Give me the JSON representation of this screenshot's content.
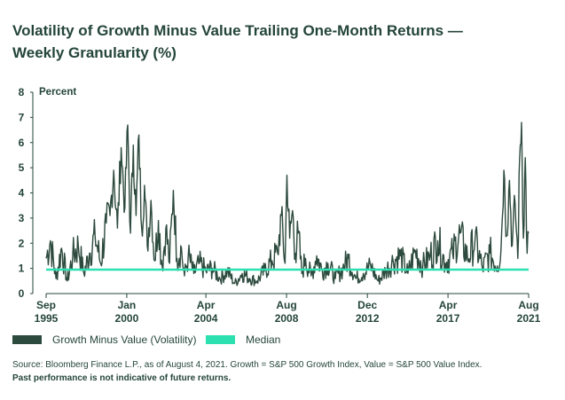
{
  "chart_data": {
    "type": "line",
    "title_line1": "Volatility of Growth Minus Value Trailing One-Month Returns —",
    "title_line2": "Weekly Granularity (%)",
    "ylabel": "Percent",
    "ylim": [
      0,
      8
    ],
    "yticks": [
      "0",
      "1",
      "2",
      "3",
      "4",
      "5",
      "6",
      "7",
      "8"
    ],
    "xticks": [
      {
        "month": "Sep",
        "year": "1995",
        "x": 1995.67
      },
      {
        "month": "Jan",
        "year": "2000",
        "x": 2000.0
      },
      {
        "month": "Apr",
        "year": "2004",
        "x": 2004.25
      },
      {
        "month": "Aug",
        "year": "2008",
        "x": 2008.58
      },
      {
        "month": "Dec",
        "year": "2012",
        "x": 2012.92
      },
      {
        "month": "Apr",
        "year": "2017",
        "x": 2017.25
      },
      {
        "month": "Aug",
        "year": "2021",
        "x": 2021.58
      }
    ],
    "xlim": [
      1995.67,
      2021.58
    ],
    "grid": false,
    "legend_position": "bottom-left",
    "series": [
      {
        "name": "Growth Minus Value (Volatility)",
        "color": "#2d4a3e",
        "x": [
          1995.67,
          1995.9,
          1996.2,
          1996.5,
          1996.8,
          1997.1,
          1997.4,
          1997.7,
          1998.0,
          1998.3,
          1998.6,
          1998.9,
          1999.1,
          1999.3,
          1999.5,
          1999.7,
          1999.9,
          2000.05,
          2000.2,
          2000.35,
          2000.5,
          2000.65,
          2000.8,
          2000.95,
          2001.1,
          2001.3,
          2001.5,
          2001.7,
          2001.9,
          2002.1,
          2002.3,
          2002.5,
          2002.7,
          2002.9,
          2003.1,
          2003.3,
          2003.6,
          2003.9,
          2004.25,
          2004.6,
          2005.0,
          2005.4,
          2005.8,
          2006.2,
          2006.6,
          2007.0,
          2007.4,
          2007.8,
          2008.1,
          2008.3,
          2008.5,
          2008.6,
          2008.75,
          2008.9,
          2009.05,
          2009.2,
          2009.4,
          2009.6,
          2009.9,
          2010.2,
          2010.5,
          2010.8,
          2011.2,
          2011.6,
          2011.9,
          2012.3,
          2012.7,
          2013.1,
          2013.5,
          2013.9,
          2014.3,
          2014.7,
          2015.1,
          2015.5,
          2015.9,
          2016.3,
          2016.7,
          2017.1,
          2017.5,
          2017.9,
          2018.3,
          2018.7,
          2019.1,
          2019.5,
          2019.9,
          2020.1,
          2020.25,
          2020.4,
          2020.55,
          2020.7,
          2020.85,
          2021.0,
          2021.1,
          2021.2,
          2021.3,
          2021.4,
          2021.5,
          2021.58
        ],
        "values": [
          1.4,
          2.1,
          0.6,
          1.8,
          0.5,
          1.5,
          1.9,
          0.8,
          1.6,
          2.3,
          1.2,
          2.8,
          3.1,
          4.9,
          2.6,
          5.8,
          3.4,
          6.7,
          2.4,
          5.9,
          3.1,
          6.3,
          2.6,
          4.3,
          1.9,
          3.7,
          1.3,
          2.9,
          1.1,
          2.6,
          1.2,
          4.1,
          1.4,
          1.9,
          0.7,
          1.5,
          0.8,
          1.2,
          0.9,
          1.0,
          0.6,
          0.9,
          0.4,
          0.8,
          0.6,
          0.5,
          0.9,
          1.3,
          1.6,
          3.1,
          1.2,
          4.7,
          2.2,
          3.3,
          1.6,
          2.4,
          0.8,
          1.4,
          0.7,
          1.5,
          0.9,
          1.2,
          0.6,
          1.0,
          1.4,
          0.6,
          0.8,
          1.1,
          0.5,
          0.9,
          1.3,
          1.5,
          0.8,
          1.7,
          1.1,
          1.5,
          2.1,
          1.2,
          1.6,
          2.4,
          1.4,
          2.1,
          1.0,
          1.6,
          1.1,
          1.8,
          4.9,
          2.3,
          4.5,
          1.9,
          3.6,
          1.4,
          5.4,
          6.8,
          2.2,
          5.4,
          1.6,
          2.4
        ]
      },
      {
        "name": "Median",
        "color": "#2de0b0",
        "value": 0.95
      }
    ]
  },
  "source_text": "Source: Bloomberg Finance L.P., as of August 4, 2021. Growth = S&P 500 Growth Index, Value = S&P 500 Value Index.",
  "disclaimer": "Past performance is not indicative of future returns."
}
